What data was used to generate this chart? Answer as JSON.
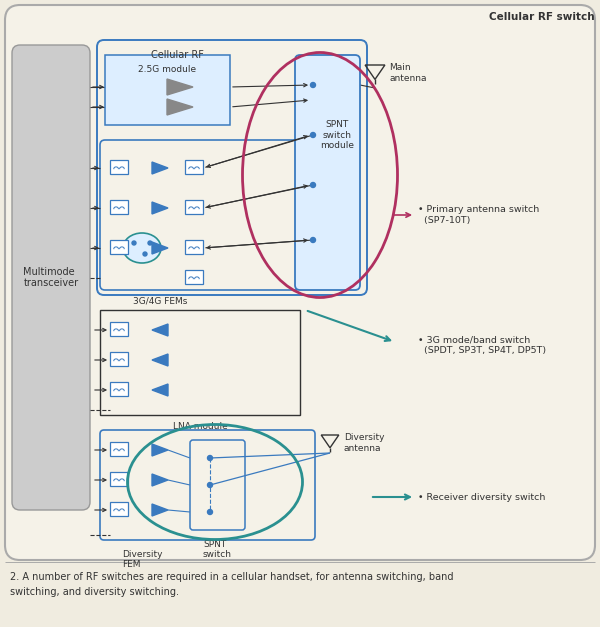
{
  "fig_width": 6.0,
  "fig_height": 6.27,
  "bg_outer": "#f0ece0",
  "bg_inner": "#f5f2e8",
  "blue": "#3a7abf",
  "teal": "#2a9090",
  "red": "#b03060",
  "gray": "#aaaaaa",
  "dark": "#333333",
  "caption_line1": "2. A number of RF switches are required in a cellular handset, for antenna switching, band",
  "caption_line2": "switching, and diversity switching.",
  "title_right": "Cellular RF switch",
  "lbl_crf": "Cellular RF",
  "lbl_mm": "Multimode\ntransceiver",
  "lbl_25g": "2.5G module",
  "lbl_3g4g": "3G/4G FEMs",
  "lbl_lna": "LNA module",
  "lbl_spnt": "SPNT\nswitch\nmodule",
  "lbl_main_ant": "Main\nantenna",
  "lbl_div_fem": "Diversity\nFEM",
  "lbl_spnt2": "SPNT\nswitch",
  "lbl_div_ant": "Diversity\nantenna",
  "lbl_primary": "• Primary antenna switch\n  (SP7-10T)",
  "lbl_3gmode": "• 3G mode/band switch\n  (SPDT, SP3T, SP4T, DP5T)",
  "lbl_diversity": "• Receiver diversity switch"
}
